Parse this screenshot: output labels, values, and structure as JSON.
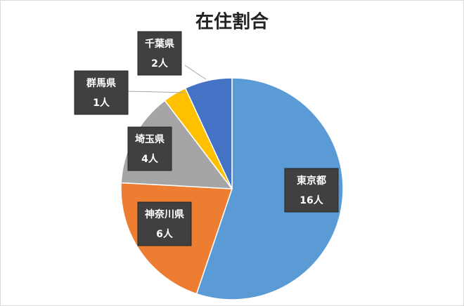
{
  "chart_data": {
    "type": "pie",
    "title": "在住割合",
    "categories": [
      "東京都",
      "神奈川県",
      "埼玉県",
      "群馬県",
      "千葉県"
    ],
    "values": [
      16,
      6,
      4,
      1,
      2
    ],
    "value_labels": [
      "16人",
      "6人",
      "4人",
      "1人",
      "2人"
    ],
    "colors": [
      "#5b9bd5",
      "#ed7d31",
      "#a5a5a5",
      "#ffc000",
      "#4472c4"
    ]
  }
}
